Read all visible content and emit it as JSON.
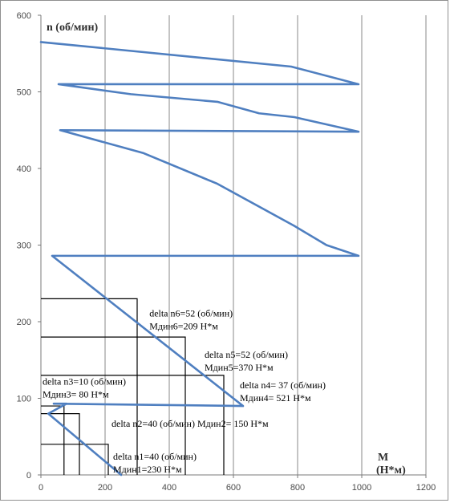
{
  "chart_data": {
    "type": "line",
    "xlabel": "M",
    "xlabel_unit": "(Н*м)",
    "ylabel": "n (об/мин)",
    "xlim": [
      0,
      1200
    ],
    "ylim": [
      0,
      600
    ],
    "x_ticks": [
      "0",
      "200",
      "400",
      "600",
      "800",
      "1000",
      "1200"
    ],
    "y_ticks": [
      "0",
      "100",
      "200",
      "300",
      "400",
      "500",
      "600"
    ],
    "grid": "vertical",
    "colors": {
      "series": "#4f7fc0",
      "steps": "#000000"
    },
    "series": [
      {
        "values": [
          [
            250,
            0
          ],
          [
            23,
            80
          ],
          [
            80,
            93
          ],
          [
            40,
            93
          ],
          [
            630,
            90
          ],
          [
            35,
            286
          ],
          [
            990,
            286
          ],
          [
            890,
            300
          ],
          [
            790,
            325
          ],
          [
            550,
            380
          ],
          [
            320,
            420
          ],
          [
            60,
            450
          ],
          [
            990,
            448
          ],
          [
            790,
            467
          ],
          [
            680,
            472
          ],
          [
            550,
            487
          ],
          [
            280,
            497
          ],
          [
            55,
            510
          ],
          [
            990,
            510
          ],
          [
            780,
            533
          ],
          [
            0,
            565
          ]
        ]
      }
    ],
    "step_lines": [
      {
        "h": 40,
        "x_end": 210
      },
      {
        "h": 80,
        "x_end": 120
      },
      {
        "h": 90,
        "x_end": 72
      },
      {
        "h": 130,
        "x_end": 570
      },
      {
        "h": 180,
        "x_end": 450
      },
      {
        "h": 230,
        "x_end": 300
      }
    ],
    "annotations": [
      {
        "lines": [
          "delta n1=40 (об/мин)",
          "Мдин1=230   Н*м"
        ],
        "x": 225,
        "y": 20
      },
      {
        "lines": [
          "delta n2=40 (об/мин) Мдин2= 150   Н*м"
        ],
        "x": 220,
        "y": 63
      },
      {
        "lines": [
          "delta n3=10 (об/мин)",
          "Мдин3= 80    Н*м"
        ],
        "x": 5,
        "y": 118
      },
      {
        "lines": [
          "delta n4= 37 (об/мин)",
          "Мдин4= 521 Н*м"
        ],
        "x": 620,
        "y": 113
      },
      {
        "lines": [
          "delta n5=52 (об/мин)",
          "Мдин5=370 Н*м"
        ],
        "x": 510,
        "y": 153
      },
      {
        "lines": [
          "delta n6=52 (об/мин)",
          "Мдин6=209 Н*м"
        ],
        "x": 338,
        "y": 207
      }
    ]
  }
}
